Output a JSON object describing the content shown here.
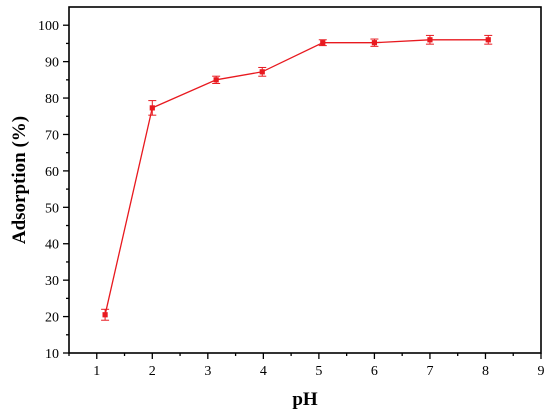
{
  "chart_data": {
    "type": "line",
    "xlabel": "pH",
    "ylabel": "Adsorption (%)",
    "xlim": [
      0.5,
      9
    ],
    "ylim": [
      10,
      105
    ],
    "x_ticks": [
      1,
      2,
      3,
      4,
      5,
      6,
      7,
      8,
      9
    ],
    "y_ticks": [
      10,
      20,
      30,
      40,
      50,
      60,
      70,
      80,
      90,
      100
    ],
    "grid": false,
    "legend": "none",
    "series": [
      {
        "color": "#e8191f",
        "marker": "square",
        "points": [
          {
            "x": 1.15,
            "y": 20.5,
            "err": 1.5
          },
          {
            "x": 2.0,
            "y": 77.3,
            "err": 2.0
          },
          {
            "x": 3.15,
            "y": 85.0,
            "err": 1.0
          },
          {
            "x": 3.98,
            "y": 87.2,
            "err": 1.2
          },
          {
            "x": 5.07,
            "y": 95.2,
            "err": 0.8
          },
          {
            "x": 6.0,
            "y": 95.2,
            "err": 1.0
          },
          {
            "x": 7.0,
            "y": 96.0,
            "err": 1.2
          },
          {
            "x": 8.05,
            "y": 96.0,
            "err": 1.2
          }
        ]
      }
    ]
  }
}
